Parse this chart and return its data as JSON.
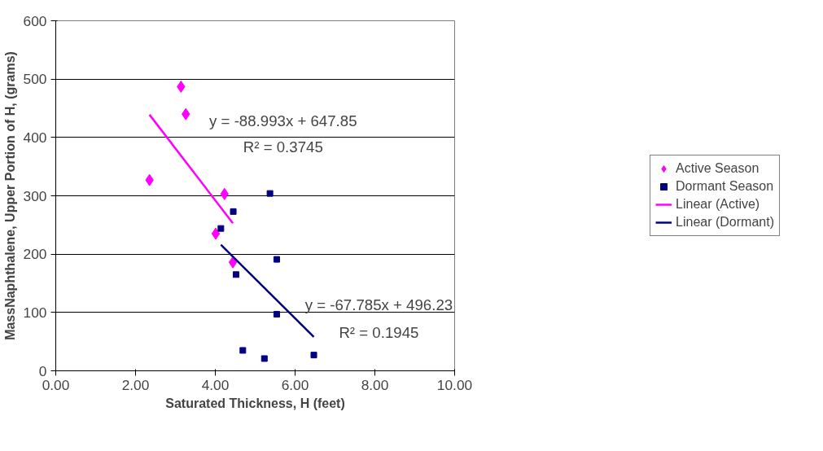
{
  "chart_data": {
    "type": "scatter",
    "xlabel": "Saturated Thickness, H (feet)",
    "ylabel": "MassNaphthalene, Upper Portion of H, (grams)",
    "xlim": [
      0,
      10
    ],
    "ylim": [
      0,
      600
    ],
    "xticks": [
      {
        "value": 0,
        "label": "0.00"
      },
      {
        "value": 2,
        "label": "2.00"
      },
      {
        "value": 4,
        "label": "4.00"
      },
      {
        "value": 6,
        "label": "6.00"
      },
      {
        "value": 8,
        "label": "8.00"
      },
      {
        "value": 10,
        "label": "10.00"
      }
    ],
    "yticks": [
      0,
      100,
      200,
      300,
      400,
      500,
      600
    ],
    "grid": "y",
    "legend": "right",
    "series": [
      {
        "name": "Active Season",
        "marker": "diamond",
        "color": "#ff00ff",
        "x": [
          2.35,
          3.14,
          3.26,
          4.23,
          4.01,
          4.44
        ],
        "values": [
          327,
          487,
          440,
          303,
          235,
          186
        ]
      },
      {
        "name": "Dormant Season",
        "marker": "square",
        "color": "#000080",
        "x": [
          4.45,
          4.14,
          5.37,
          5.54,
          4.52,
          5.54,
          4.69,
          5.23,
          6.47
        ],
        "values": [
          273,
          244,
          304,
          191,
          165,
          97,
          35,
          21,
          27
        ]
      },
      {
        "name": "Linear (Active)",
        "type": "line",
        "color": "#ff00ff",
        "x": [
          2.35,
          4.44
        ],
        "values": [
          439,
          253
        ]
      },
      {
        "name": "Linear (Dormant)",
        "type": "line",
        "color": "#000080",
        "x": [
          4.14,
          6.47
        ],
        "values": [
          216,
          58
        ]
      }
    ],
    "annotations": [
      "y = -88.993x + 647.85",
      "R² = 0.3745",
      "y = -67.785x + 496.23",
      "R² = 0.1945"
    ]
  }
}
